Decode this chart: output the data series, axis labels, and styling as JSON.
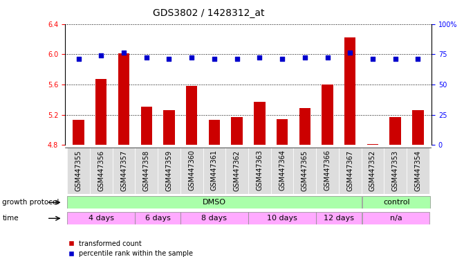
{
  "title": "GDS3802 / 1428312_at",
  "samples": [
    "GSM447355",
    "GSM447356",
    "GSM447357",
    "GSM447358",
    "GSM447359",
    "GSM447360",
    "GSM447361",
    "GSM447362",
    "GSM447363",
    "GSM447364",
    "GSM447365",
    "GSM447366",
    "GSM447367",
    "GSM447352",
    "GSM447353",
    "GSM447354"
  ],
  "transformed_count": [
    5.13,
    5.67,
    6.01,
    5.31,
    5.26,
    5.58,
    5.13,
    5.17,
    5.37,
    5.14,
    5.29,
    5.6,
    6.22,
    4.81,
    5.17,
    5.26
  ],
  "percentile_rank": [
    71,
    74,
    76,
    72,
    71,
    72,
    71,
    71,
    72,
    71,
    72,
    72,
    76,
    71,
    71,
    71
  ],
  "ylim_left": [
    4.8,
    6.4
  ],
  "ylim_right": [
    0,
    100
  ],
  "yticks_left": [
    4.8,
    5.2,
    5.6,
    6.0,
    6.4
  ],
  "yticks_right": [
    0,
    25,
    50,
    75,
    100
  ],
  "bar_color": "#cc0000",
  "dot_color": "#0000cc",
  "bg_color": "#ffffff",
  "grid_color": "#000000",
  "dmso_color": "#aaffaa",
  "control_color": "#aaffaa",
  "time_color": "#ffaaff",
  "sample_bg_color": "#dddddd",
  "xlabel_growth": "growth protocol",
  "xlabel_time": "time",
  "legend_bar": "transformed count",
  "legend_dot": "percentile rank within the sample",
  "title_fontsize": 10,
  "tick_fontsize": 7,
  "label_fontsize": 8,
  "time_boundaries": [
    [
      0,
      3,
      "4 days"
    ],
    [
      3,
      5,
      "6 days"
    ],
    [
      5,
      8,
      "8 days"
    ],
    [
      8,
      11,
      "10 days"
    ],
    [
      11,
      13,
      "12 days"
    ],
    [
      13,
      16,
      "n/a"
    ]
  ]
}
